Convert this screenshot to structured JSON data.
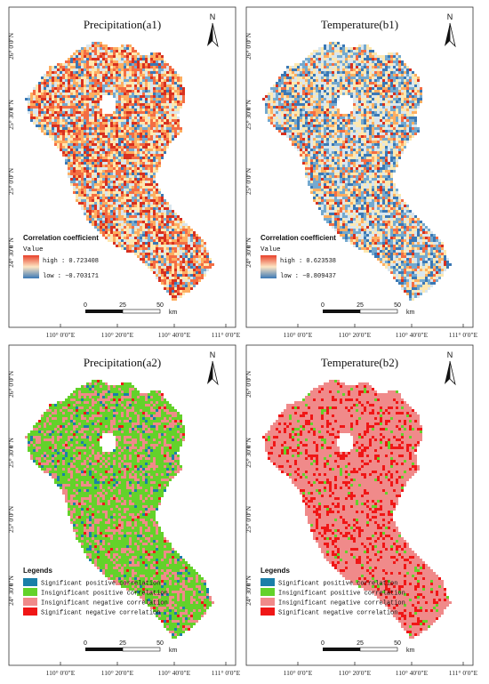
{
  "panels": [
    {
      "id": "a1",
      "title": "Precipitation(a1)",
      "type": "continuous",
      "legend_title": "Correlation coefficient",
      "legend_sub": "Value",
      "high_label": "high : 0.723408",
      "low_label": "low : −0.703171",
      "palette": [
        "#d7301f",
        "#f46d43",
        "#fdae61",
        "#fee8b0",
        "#d9e6ee",
        "#74a9cf",
        "#3a78b5"
      ],
      "weights": [
        0.14,
        0.2,
        0.2,
        0.18,
        0.12,
        0.1,
        0.06
      ],
      "north_label": "N",
      "scale_labels": [
        "0",
        "25",
        "50",
        "km"
      ]
    },
    {
      "id": "b1",
      "title": "Temperature(b1)",
      "type": "continuous",
      "legend_title": "Correlation coefficient",
      "legend_sub": "Value",
      "high_label": "high : 0.623538",
      "low_label": "low : −0.809437",
      "palette": [
        "#d7301f",
        "#f46d43",
        "#fdae61",
        "#fee8b0",
        "#d9e6ee",
        "#74a9cf",
        "#3a78b5"
      ],
      "weights": [
        0.04,
        0.08,
        0.14,
        0.2,
        0.2,
        0.2,
        0.14
      ],
      "north_label": "N",
      "scale_labels": [
        "0",
        "25",
        "50",
        "km"
      ]
    },
    {
      "id": "a2",
      "title": "Precipitation(a2)",
      "type": "categorical",
      "legend_title": "Legends",
      "categories": [
        {
          "label": "Significant positive correlation",
          "color": "#1a7fa8"
        },
        {
          "label": "Insignificant positive correlation",
          "color": "#63d22a"
        },
        {
          "label": "Insignificant negative correlation",
          "color": "#f08a8a"
        },
        {
          "label": "Significant negative correlation",
          "color": "#f01616"
        }
      ],
      "weights": [
        0.06,
        0.62,
        0.3,
        0.02
      ],
      "north_label": "N",
      "scale_labels": [
        "0",
        "25",
        "50",
        "km"
      ]
    },
    {
      "id": "b2",
      "title": "Temperature(b2)",
      "type": "categorical",
      "legend_title": "Legends",
      "categories": [
        {
          "label": "Significant positive correlation",
          "color": "#1a7fa8"
        },
        {
          "label": "Insignificant positive correlation",
          "color": "#63d22a"
        },
        {
          "label": "Insignificant negative correlation",
          "color": "#f08a8a"
        },
        {
          "label": "Significant negative correlation",
          "color": "#f01616"
        }
      ],
      "weights": [
        0.0,
        0.05,
        0.75,
        0.2
      ],
      "north_label": "N",
      "scale_labels": [
        "0",
        "25",
        "50",
        "km"
      ]
    }
  ],
  "lon_ticks": [
    "110° 0′0″E",
    "110° 20′0″E",
    "110° 40′0″E",
    "111° 0′0″E"
  ],
  "lat_ticks": [
    "26° 0′0″N",
    "25° 30′0″N",
    "25° 0′0″N",
    "24° 30′0″N"
  ]
}
